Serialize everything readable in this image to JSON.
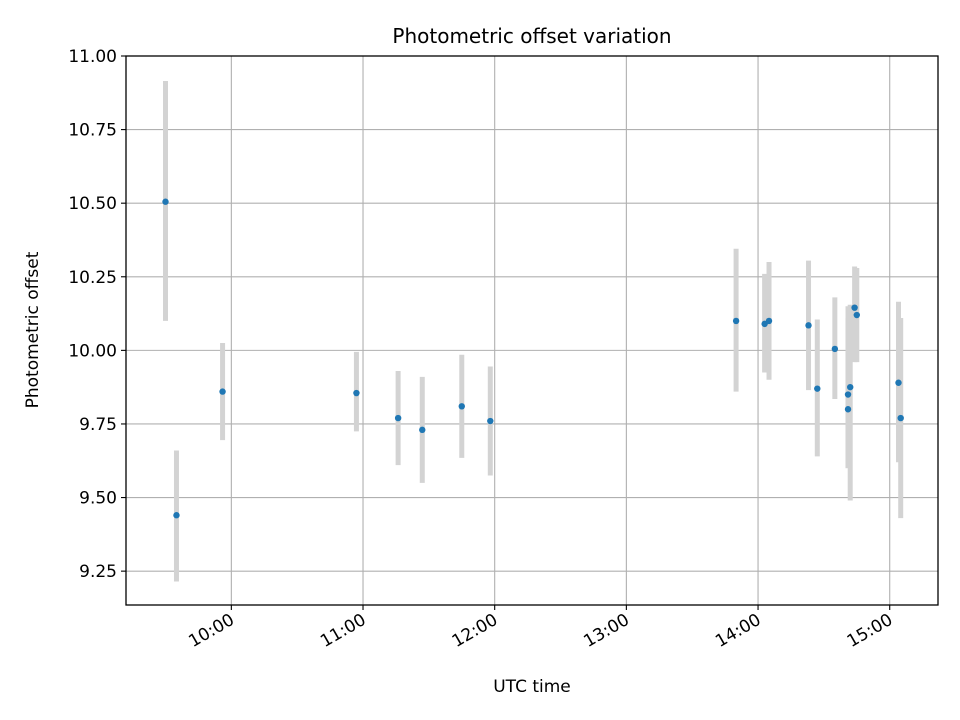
{
  "chart_data": {
    "type": "scatter",
    "title": "Photometric offset variation",
    "xlabel": "UTC time",
    "ylabel": "Photometric offset",
    "xlim": [
      "09:12",
      "15:22"
    ],
    "ylim": [
      9.135,
      11.0
    ],
    "x_ticks": [
      "10:00",
      "11:00",
      "12:00",
      "13:00",
      "14:00",
      "15:00"
    ],
    "y_ticks": [
      "9.25",
      "9.50",
      "9.75",
      "10.00",
      "10.25",
      "10.50",
      "10.75",
      "11.00"
    ],
    "grid": true,
    "colors": {
      "point": "#1f77b4",
      "error_bar": "#d3d3d3",
      "grid": "#b0b0b0"
    },
    "points": [
      {
        "x": "09:30",
        "y": 10.505,
        "ylo": 10.1,
        "yhi": 10.915
      },
      {
        "x": "09:35",
        "y": 9.44,
        "ylo": 9.215,
        "yhi": 9.66
      },
      {
        "x": "09:56",
        "y": 9.86,
        "ylo": 9.695,
        "yhi": 10.025
      },
      {
        "x": "10:57",
        "y": 9.855,
        "ylo": 9.725,
        "yhi": 9.995
      },
      {
        "x": "11:16",
        "y": 9.77,
        "ylo": 9.61,
        "yhi": 9.93
      },
      {
        "x": "11:27",
        "y": 9.73,
        "ylo": 9.55,
        "yhi": 9.91
      },
      {
        "x": "11:45",
        "y": 9.81,
        "ylo": 9.635,
        "yhi": 9.985
      },
      {
        "x": "11:58",
        "y": 9.76,
        "ylo": 9.575,
        "yhi": 9.945
      },
      {
        "x": "13:50",
        "y": 10.1,
        "ylo": 9.86,
        "yhi": 10.345
      },
      {
        "x": "14:03",
        "y": 10.09,
        "ylo": 9.925,
        "yhi": 10.26
      },
      {
        "x": "14:05",
        "y": 10.1,
        "ylo": 9.9,
        "yhi": 10.3
      },
      {
        "x": "14:23",
        "y": 10.085,
        "ylo": 9.865,
        "yhi": 10.305
      },
      {
        "x": "14:27",
        "y": 9.87,
        "ylo": 9.64,
        "yhi": 10.105
      },
      {
        "x": "14:35",
        "y": 10.005,
        "ylo": 9.835,
        "yhi": 10.18
      },
      {
        "x": "14:41",
        "y": 9.8,
        "ylo": 9.6,
        "yhi": 10.11
      },
      {
        "x": "14:41",
        "y": 9.85,
        "ylo": 9.6,
        "yhi": 10.15
      },
      {
        "x": "14:42",
        "y": 9.875,
        "ylo": 9.49,
        "yhi": 10.155
      },
      {
        "x": "14:44",
        "y": 10.145,
        "ylo": 9.96,
        "yhi": 10.285
      },
      {
        "x": "14:45",
        "y": 10.12,
        "ylo": 9.96,
        "yhi": 10.28
      },
      {
        "x": "15:04",
        "y": 9.89,
        "ylo": 9.62,
        "yhi": 10.165
      },
      {
        "x": "15:05",
        "y": 9.77,
        "ylo": 9.43,
        "yhi": 10.11
      }
    ]
  }
}
